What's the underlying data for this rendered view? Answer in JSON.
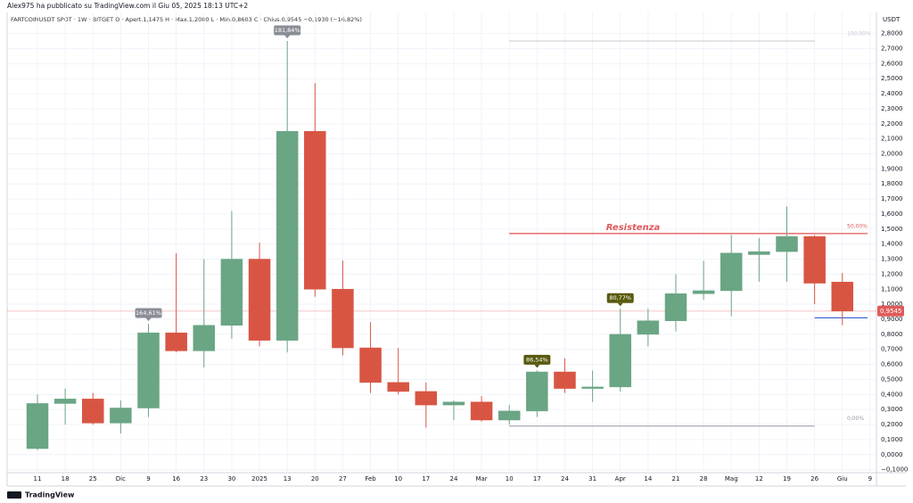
{
  "header": "Alex975 ha pubblicato su TradingView.com il Giu 05, 2025 18:13 UTC+2",
  "footer": "TradingView",
  "chart_data": {
    "type": "candlestick",
    "title": "FARTCOINUSDT SPOT · 1W · BITGET  O · Apert.1,1475  H · Max.1,2080  L · Min.0,8603  C · Chius.0,9545  −0,1930 (−16,82%)",
    "y_axis_label": "USDT",
    "categories": [
      "11",
      "18",
      "25",
      "Dic",
      "9",
      "16",
      "23",
      "30",
      "2025",
      "13",
      "20",
      "27",
      "Feb",
      "10",
      "17",
      "24",
      "Mar",
      "10",
      "17",
      "24",
      "31",
      "Apr",
      "14",
      "21",
      "28",
      "Mag",
      "12",
      "19",
      "26",
      "Giu",
      "9"
    ],
    "open": [
      0.04,
      0.34,
      0.37,
      0.21,
      0.31,
      0.81,
      0.69,
      0.86,
      1.3,
      0.76,
      2.15,
      1.1,
      0.71,
      0.48,
      0.42,
      0.33,
      0.35,
      0.23,
      0.29,
      0.55,
      0.44,
      0.45,
      0.8,
      0.89,
      1.07,
      1.09,
      1.33,
      1.35,
      1.45,
      1.1475,
      null
    ],
    "high": [
      0.4,
      0.44,
      0.41,
      0.36,
      0.87,
      1.34,
      1.3,
      1.62,
      1.41,
      2.75,
      2.47,
      1.29,
      0.88,
      0.71,
      0.48,
      0.36,
      0.39,
      0.33,
      0.56,
      0.64,
      0.56,
      0.97,
      0.97,
      1.2,
      1.29,
      1.46,
      1.44,
      1.65,
      1.46,
      1.208,
      null
    ],
    "low": [
      0.03,
      0.2,
      0.2,
      0.14,
      0.25,
      0.68,
      0.58,
      0.77,
      0.72,
      0.68,
      1.05,
      0.66,
      0.41,
      0.4,
      0.18,
      0.23,
      0.22,
      0.2,
      0.25,
      0.41,
      0.35,
      0.42,
      0.72,
      0.82,
      1.03,
      0.92,
      1.15,
      1.15,
      1.0,
      0.8603,
      null
    ],
    "close": [
      0.34,
      0.37,
      0.21,
      0.31,
      0.81,
      0.69,
      0.86,
      1.3,
      0.76,
      2.15,
      1.1,
      0.71,
      0.48,
      0.42,
      0.33,
      0.35,
      0.23,
      0.29,
      0.55,
      0.44,
      0.45,
      0.8,
      0.89,
      1.07,
      1.09,
      1.34,
      1.35,
      1.45,
      1.14,
      0.9545,
      null
    ],
    "high_labels": [
      null,
      null,
      null,
      null,
      {
        "label": "164,61%",
        "color": "#8a8d96"
      },
      null,
      null,
      null,
      null,
      {
        "label": "181,84%",
        "color": "#8a8d96"
      },
      null,
      null,
      null,
      null,
      null,
      null,
      null,
      null,
      {
        "label": "86,54%",
        "color": "#5a5a10"
      },
      null,
      null,
      {
        "label": "80,77%",
        "color": "#5a5a10"
      },
      null,
      null,
      null,
      null,
      null,
      null,
      null,
      null,
      null
    ],
    "up_color": "#6aa584",
    "down_color": "#d85543",
    "levels": [
      {
        "label": "100,00%",
        "value": 2.75,
        "color": "#c8cad0"
      },
      {
        "label": "50,00%",
        "value": 1.47,
        "color": "#e05a5a"
      },
      {
        "label": "0,00%",
        "value": 0.19,
        "color": "#9598a1"
      }
    ],
    "resistance": {
      "label": "Resistenza",
      "value": 1.47,
      "color": "#e05a5a"
    },
    "support": {
      "value": 0.91,
      "color": "#2f55d4"
    },
    "last_price": {
      "value": 0.9545,
      "label": "0,9545",
      "color": "#e05a5a"
    },
    "ylim": [
      -0.12,
      2.94
    ],
    "grid": true,
    "yticks": [
      {
        "value": -0.1,
        "label": "−0,1000"
      },
      {
        "value": 0,
        "label": "0,0000"
      },
      {
        "value": 0.1,
        "label": "0,1000"
      },
      {
        "value": 0.2,
        "label": "0,2000"
      },
      {
        "value": 0.3,
        "label": "0,3000"
      },
      {
        "value": 0.4,
        "label": "0,4000"
      },
      {
        "value": 0.5,
        "label": "0,5000"
      },
      {
        "value": 0.6,
        "label": "0,6000"
      },
      {
        "value": 0.7,
        "label": "0,7000"
      },
      {
        "value": 0.8,
        "label": "0,8000"
      },
      {
        "value": 0.9,
        "label": "0,9000"
      },
      {
        "value": 1.0,
        "label": "1,0000"
      },
      {
        "value": 1.1,
        "label": "1,1000"
      },
      {
        "value": 1.2,
        "label": "1,2000"
      },
      {
        "value": 1.3,
        "label": "1,3000"
      },
      {
        "value": 1.4,
        "label": "1,4000"
      },
      {
        "value": 1.5,
        "label": "1,5000"
      },
      {
        "value": 1.6,
        "label": "1,6000"
      },
      {
        "value": 1.7,
        "label": "1,7000"
      },
      {
        "value": 1.8,
        "label": "1,8000"
      },
      {
        "value": 1.9,
        "label": "1,9000"
      },
      {
        "value": 2.0,
        "label": "2,0000"
      },
      {
        "value": 2.1,
        "label": "2,1000"
      },
      {
        "value": 2.2,
        "label": "2,2000"
      },
      {
        "value": 2.3,
        "label": "2,3000"
      },
      {
        "value": 2.4,
        "label": "2,4000"
      },
      {
        "value": 2.5,
        "label": "2,5000"
      },
      {
        "value": 2.6,
        "label": "2,6000"
      },
      {
        "value": 2.7,
        "label": "2,7000"
      },
      {
        "value": 2.8,
        "label": "2,8000"
      }
    ]
  }
}
